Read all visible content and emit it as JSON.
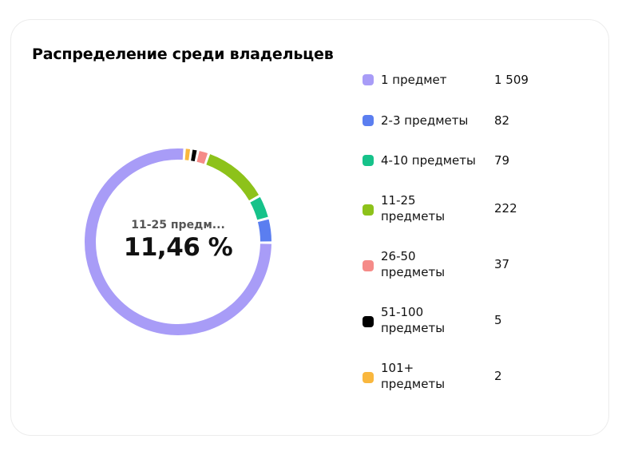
{
  "card": {
    "title": "Распределение среди владельцев"
  },
  "center": {
    "label": "11-25 предм...",
    "value": "11,46 %"
  },
  "legend": [
    {
      "label": "1 предмет",
      "value": "1 509",
      "color": "#a89cf7"
    },
    {
      "label": "2-3 предметы",
      "value": "82",
      "color": "#5b7ef0"
    },
    {
      "label": "4-10 предметы",
      "value": "79",
      "color": "#16c28a"
    },
    {
      "label": "11-25 предметы",
      "value": "222",
      "color": "#8dc21a"
    },
    {
      "label": "26-50 предметы",
      "value": "37",
      "color": "#f58b88"
    },
    {
      "label": "51-100 предметы",
      "value": "5",
      "color": "#000000"
    },
    {
      "label": "101+ предметы",
      "value": "2",
      "color": "#f9b73e"
    }
  ],
  "chart_data": {
    "type": "pie",
    "style": "donut",
    "title": "Распределение среди владельцев",
    "categories": [
      "1 предмет",
      "2-3 предметы",
      "4-10 предметы",
      "11-25 предметы",
      "26-50 предметы",
      "51-100 предметы",
      "101+ предметы"
    ],
    "values": [
      1509,
      82,
      79,
      222,
      37,
      5,
      2
    ],
    "colors": [
      "#a89cf7",
      "#5b7ef0",
      "#16c28a",
      "#8dc21a",
      "#f58b88",
      "#000000",
      "#f9b73e"
    ],
    "highlighted": "11-25 предметы",
    "highlighted_share": "11,46 %",
    "legend_position": "right"
  }
}
